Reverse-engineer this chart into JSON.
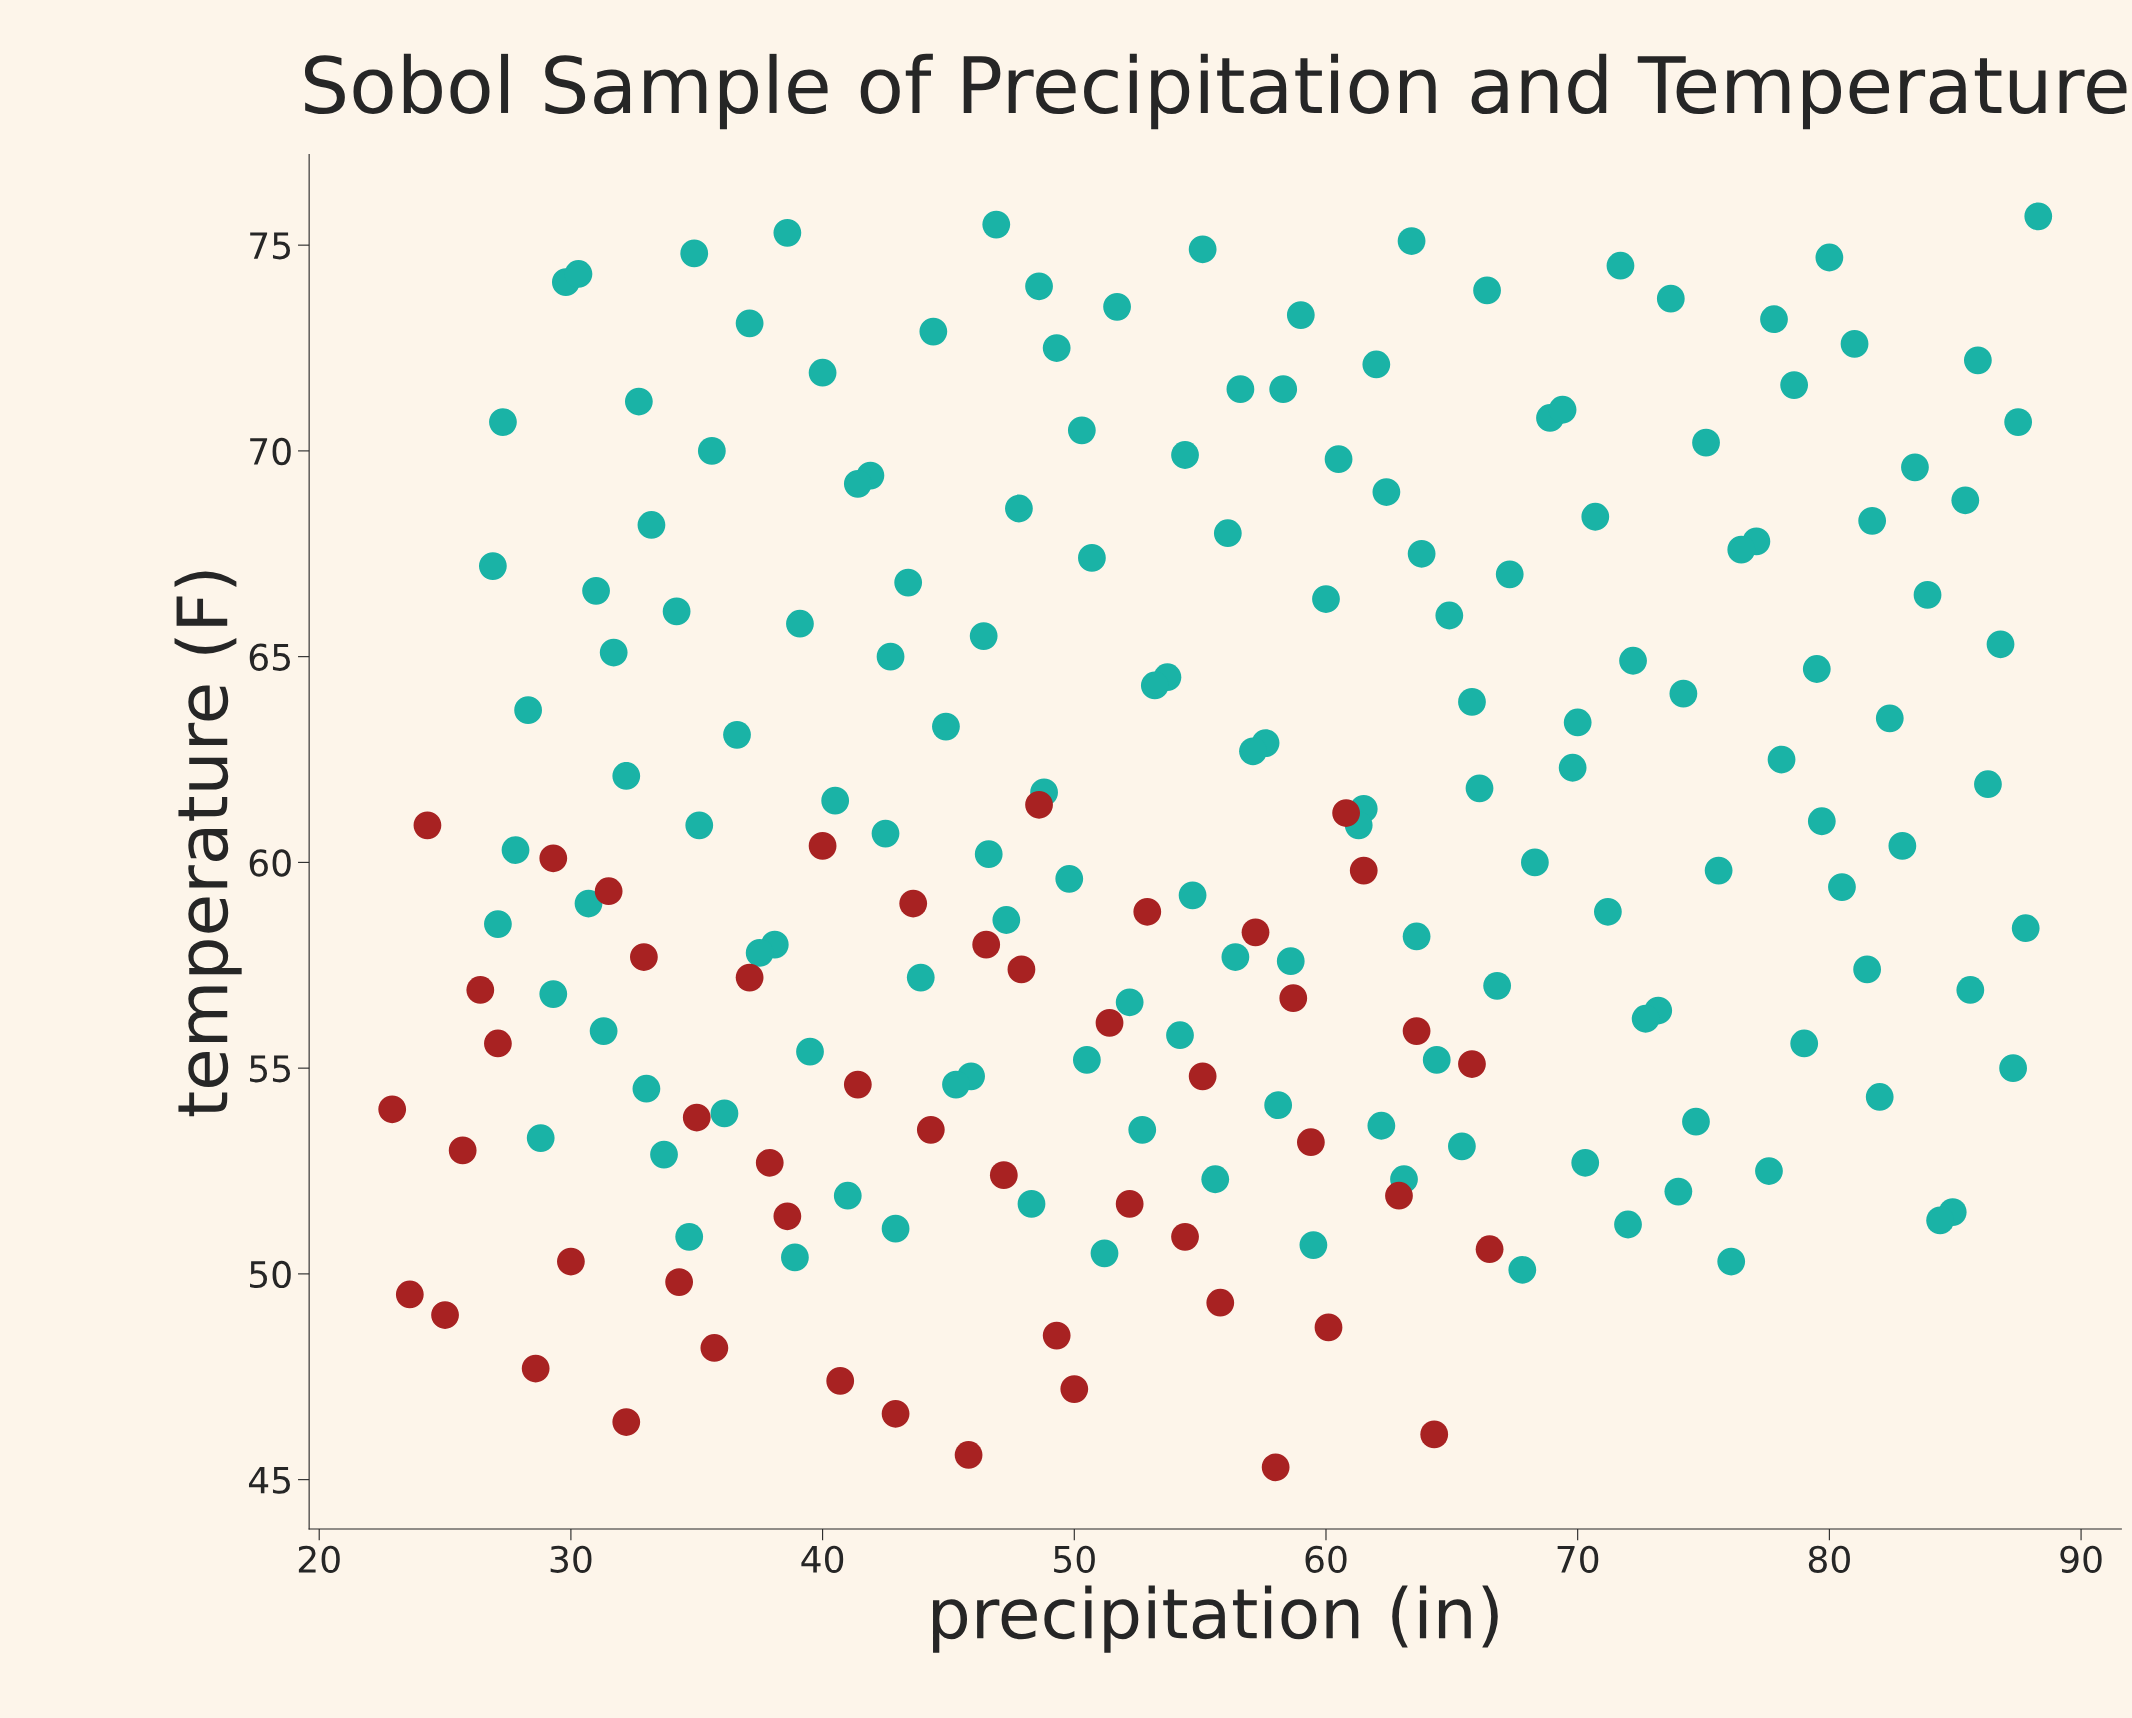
{
  "chart_data": {
    "type": "scatter",
    "title": "Sobol Sample of Precipitation and Temperature",
    "xlabel": "precipitation (in)",
    "ylabel": "temperature (F)",
    "xlim": [
      19.6,
      91.6
    ],
    "xticks": [
      20,
      30,
      40,
      50,
      60,
      70,
      80,
      90
    ],
    "ylim": [
      43.8,
      77.2
    ],
    "yticks": [
      45,
      50,
      55,
      60,
      65,
      70,
      75
    ],
    "grid": false,
    "marker": "circle",
    "series": [
      {
        "color": "#1ab3a6",
        "x": [
          46.9,
          88.3,
          38.6,
          34.9,
          55.1,
          63.4,
          80.0,
          71.7,
          29.8,
          30.3,
          48.6,
          66.4,
          73.7,
          51.7,
          59.0,
          77.8,
          37.1,
          44.4,
          49.3,
          81.0,
          85.9,
          62.0,
          40.0,
          56.6,
          58.3,
          78.6,
          32.7,
          68.9,
          69.4,
          87.5,
          27.3,
          50.3,
          75.1,
          35.6,
          54.4,
          60.5,
          83.4,
          41.9,
          41.4,
          62.4,
          85.4,
          47.8,
          70.7,
          81.7,
          33.2,
          56.1,
          77.1,
          76.5,
          63.8,
          50.7,
          26.9,
          67.3,
          43.4,
          31.0,
          83.9,
          60.0,
          34.2,
          64.9,
          39.1,
          46.4,
          86.8,
          31.7,
          42.7,
          72.2,
          79.5,
          53.7,
          53.2,
          74.2,
          65.8,
          28.3,
          82.4,
          70.0,
          44.9,
          36.6,
          57.6,
          57.1,
          78.1,
          69.8,
          32.2,
          86.3,
          66.1,
          48.8,
          40.5,
          61.5,
          61.3,
          79.7,
          35.1,
          42.5,
          82.9,
          27.8,
          46.6,
          68.3,
          75.6,
          49.8,
          80.5,
          54.7,
          30.7,
          71.2,
          47.3,
          27.1,
          87.8,
          63.6,
          38.1,
          37.5,
          56.4,
          58.6,
          81.5,
          43.9,
          66.8,
          85.6,
          29.3,
          52.2,
          73.2,
          72.7,
          31.3,
          54.2,
          79.0,
          39.5,
          50.5,
          64.4,
          87.3,
          45.9,
          45.3,
          33.0,
          82.0,
          58.1,
          36.1,
          74.7,
          62.2,
          52.7,
          28.8,
          65.4,
          33.7,
          70.3,
          77.6,
          55.6,
          63.1,
          74.0,
          41.0,
          48.3,
          84.9,
          84.4,
          72.0,
          42.9,
          34.7,
          59.5,
          51.2,
          38.9,
          76.1,
          67.8
        ],
        "values": [
          75.5,
          75.7,
          75.3,
          74.8,
          74.9,
          75.1,
          74.7,
          74.5,
          74.1,
          74.3,
          74.0,
          73.9,
          73.7,
          73.5,
          73.3,
          73.2,
          73.1,
          72.9,
          72.5,
          72.6,
          72.2,
          72.1,
          71.9,
          71.5,
          71.5,
          71.6,
          71.2,
          70.8,
          71.0,
          70.7,
          70.7,
          70.5,
          70.2,
          70.0,
          69.9,
          69.8,
          69.6,
          69.4,
          69.2,
          69.0,
          68.8,
          68.6,
          68.4,
          68.3,
          68.2,
          68.0,
          67.8,
          67.6,
          67.5,
          67.4,
          67.2,
          67.0,
          66.8,
          66.6,
          66.5,
          66.4,
          66.1,
          66.0,
          65.8,
          65.5,
          65.3,
          65.1,
          65.0,
          64.9,
          64.7,
          64.5,
          64.3,
          64.1,
          63.9,
          63.7,
          63.5,
          63.4,
          63.3,
          63.1,
          62.9,
          62.7,
          62.5,
          62.3,
          62.1,
          61.9,
          61.8,
          61.7,
          61.5,
          61.3,
          60.9,
          61.0,
          60.9,
          60.7,
          60.4,
          60.3,
          60.2,
          60.0,
          59.8,
          59.6,
          59.4,
          59.2,
          59.0,
          58.8,
          58.6,
          58.5,
          58.4,
          58.2,
          58.0,
          57.8,
          57.7,
          57.6,
          57.4,
          57.2,
          57.0,
          56.9,
          56.8,
          56.6,
          56.4,
          56.2,
          55.9,
          55.8,
          55.6,
          55.4,
          55.2,
          55.2,
          55.0,
          54.8,
          54.6,
          54.5,
          54.3,
          54.1,
          53.9,
          53.7,
          53.6,
          53.5,
          53.3,
          53.1,
          52.9,
          52.7,
          52.5,
          52.3,
          52.3,
          52.0,
          51.9,
          51.7,
          51.5,
          51.3,
          51.2,
          51.1,
          50.9,
          50.7,
          50.5,
          50.4,
          50.3,
          50.1
        ]
      },
      {
        "color": "#a82222",
        "x": [
          22.9,
          24.3,
          23.6,
          25.0,
          25.7,
          26.4,
          27.1,
          28.6,
          29.3,
          30.0,
          31.5,
          32.2,
          32.9,
          34.3,
          35.0,
          35.7,
          37.1,
          37.9,
          38.6,
          40.0,
          40.7,
          41.4,
          42.9,
          43.6,
          44.3,
          45.8,
          46.5,
          47.2,
          47.9,
          48.6,
          49.3,
          50.0,
          51.4,
          52.2,
          52.9,
          54.4,
          55.1,
          55.8,
          57.2,
          58.0,
          58.7,
          59.4,
          60.1,
          60.8,
          61.5,
          62.9,
          63.6,
          64.3,
          65.8,
          66.5
        ],
        "values": [
          54.0,
          60.9,
          49.5,
          49.0,
          53.0,
          56.9,
          55.6,
          47.7,
          60.1,
          50.3,
          59.3,
          46.4,
          57.7,
          49.8,
          53.8,
          48.2,
          57.2,
          52.7,
          51.4,
          60.4,
          47.4,
          54.6,
          46.6,
          59.0,
          53.5,
          45.6,
          58.0,
          52.4,
          57.4,
          61.4,
          48.5,
          47.2,
          56.1,
          51.7,
          58.8,
          50.9,
          54.8,
          49.3,
          58.3,
          45.3,
          56.7,
          53.2,
          48.7,
          61.2,
          59.8,
          51.9,
          55.9,
          46.1,
          55.1,
          50.6
        ]
      }
    ]
  }
}
